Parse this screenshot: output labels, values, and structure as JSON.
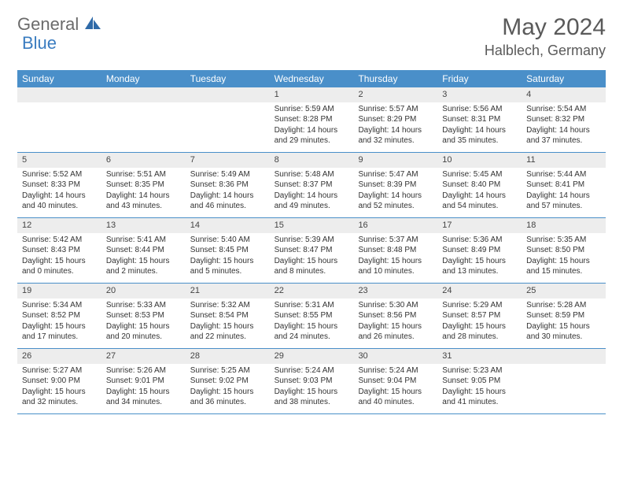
{
  "logo": {
    "part1": "General",
    "part2": "Blue"
  },
  "title": "May 2024",
  "location": "Halblech, Germany",
  "colors": {
    "header_bg": "#4a8fc9",
    "header_text": "#ffffff",
    "daynum_bg": "#ededed",
    "border": "#4a8fc9",
    "text": "#333333",
    "logo_gray": "#6b6b6b",
    "logo_blue": "#3a7cc0"
  },
  "day_names": [
    "Sunday",
    "Monday",
    "Tuesday",
    "Wednesday",
    "Thursday",
    "Friday",
    "Saturday"
  ],
  "weeks": [
    [
      null,
      null,
      null,
      {
        "n": "1",
        "sr": "Sunrise: 5:59 AM",
        "ss": "Sunset: 8:28 PM",
        "dl1": "Daylight: 14 hours",
        "dl2": "and 29 minutes."
      },
      {
        "n": "2",
        "sr": "Sunrise: 5:57 AM",
        "ss": "Sunset: 8:29 PM",
        "dl1": "Daylight: 14 hours",
        "dl2": "and 32 minutes."
      },
      {
        "n": "3",
        "sr": "Sunrise: 5:56 AM",
        "ss": "Sunset: 8:31 PM",
        "dl1": "Daylight: 14 hours",
        "dl2": "and 35 minutes."
      },
      {
        "n": "4",
        "sr": "Sunrise: 5:54 AM",
        "ss": "Sunset: 8:32 PM",
        "dl1": "Daylight: 14 hours",
        "dl2": "and 37 minutes."
      }
    ],
    [
      {
        "n": "5",
        "sr": "Sunrise: 5:52 AM",
        "ss": "Sunset: 8:33 PM",
        "dl1": "Daylight: 14 hours",
        "dl2": "and 40 minutes."
      },
      {
        "n": "6",
        "sr": "Sunrise: 5:51 AM",
        "ss": "Sunset: 8:35 PM",
        "dl1": "Daylight: 14 hours",
        "dl2": "and 43 minutes."
      },
      {
        "n": "7",
        "sr": "Sunrise: 5:49 AM",
        "ss": "Sunset: 8:36 PM",
        "dl1": "Daylight: 14 hours",
        "dl2": "and 46 minutes."
      },
      {
        "n": "8",
        "sr": "Sunrise: 5:48 AM",
        "ss": "Sunset: 8:37 PM",
        "dl1": "Daylight: 14 hours",
        "dl2": "and 49 minutes."
      },
      {
        "n": "9",
        "sr": "Sunrise: 5:47 AM",
        "ss": "Sunset: 8:39 PM",
        "dl1": "Daylight: 14 hours",
        "dl2": "and 52 minutes."
      },
      {
        "n": "10",
        "sr": "Sunrise: 5:45 AM",
        "ss": "Sunset: 8:40 PM",
        "dl1": "Daylight: 14 hours",
        "dl2": "and 54 minutes."
      },
      {
        "n": "11",
        "sr": "Sunrise: 5:44 AM",
        "ss": "Sunset: 8:41 PM",
        "dl1": "Daylight: 14 hours",
        "dl2": "and 57 minutes."
      }
    ],
    [
      {
        "n": "12",
        "sr": "Sunrise: 5:42 AM",
        "ss": "Sunset: 8:43 PM",
        "dl1": "Daylight: 15 hours",
        "dl2": "and 0 minutes."
      },
      {
        "n": "13",
        "sr": "Sunrise: 5:41 AM",
        "ss": "Sunset: 8:44 PM",
        "dl1": "Daylight: 15 hours",
        "dl2": "and 2 minutes."
      },
      {
        "n": "14",
        "sr": "Sunrise: 5:40 AM",
        "ss": "Sunset: 8:45 PM",
        "dl1": "Daylight: 15 hours",
        "dl2": "and 5 minutes."
      },
      {
        "n": "15",
        "sr": "Sunrise: 5:39 AM",
        "ss": "Sunset: 8:47 PM",
        "dl1": "Daylight: 15 hours",
        "dl2": "and 8 minutes."
      },
      {
        "n": "16",
        "sr": "Sunrise: 5:37 AM",
        "ss": "Sunset: 8:48 PM",
        "dl1": "Daylight: 15 hours",
        "dl2": "and 10 minutes."
      },
      {
        "n": "17",
        "sr": "Sunrise: 5:36 AM",
        "ss": "Sunset: 8:49 PM",
        "dl1": "Daylight: 15 hours",
        "dl2": "and 13 minutes."
      },
      {
        "n": "18",
        "sr": "Sunrise: 5:35 AM",
        "ss": "Sunset: 8:50 PM",
        "dl1": "Daylight: 15 hours",
        "dl2": "and 15 minutes."
      }
    ],
    [
      {
        "n": "19",
        "sr": "Sunrise: 5:34 AM",
        "ss": "Sunset: 8:52 PM",
        "dl1": "Daylight: 15 hours",
        "dl2": "and 17 minutes."
      },
      {
        "n": "20",
        "sr": "Sunrise: 5:33 AM",
        "ss": "Sunset: 8:53 PM",
        "dl1": "Daylight: 15 hours",
        "dl2": "and 20 minutes."
      },
      {
        "n": "21",
        "sr": "Sunrise: 5:32 AM",
        "ss": "Sunset: 8:54 PM",
        "dl1": "Daylight: 15 hours",
        "dl2": "and 22 minutes."
      },
      {
        "n": "22",
        "sr": "Sunrise: 5:31 AM",
        "ss": "Sunset: 8:55 PM",
        "dl1": "Daylight: 15 hours",
        "dl2": "and 24 minutes."
      },
      {
        "n": "23",
        "sr": "Sunrise: 5:30 AM",
        "ss": "Sunset: 8:56 PM",
        "dl1": "Daylight: 15 hours",
        "dl2": "and 26 minutes."
      },
      {
        "n": "24",
        "sr": "Sunrise: 5:29 AM",
        "ss": "Sunset: 8:57 PM",
        "dl1": "Daylight: 15 hours",
        "dl2": "and 28 minutes."
      },
      {
        "n": "25",
        "sr": "Sunrise: 5:28 AM",
        "ss": "Sunset: 8:59 PM",
        "dl1": "Daylight: 15 hours",
        "dl2": "and 30 minutes."
      }
    ],
    [
      {
        "n": "26",
        "sr": "Sunrise: 5:27 AM",
        "ss": "Sunset: 9:00 PM",
        "dl1": "Daylight: 15 hours",
        "dl2": "and 32 minutes."
      },
      {
        "n": "27",
        "sr": "Sunrise: 5:26 AM",
        "ss": "Sunset: 9:01 PM",
        "dl1": "Daylight: 15 hours",
        "dl2": "and 34 minutes."
      },
      {
        "n": "28",
        "sr": "Sunrise: 5:25 AM",
        "ss": "Sunset: 9:02 PM",
        "dl1": "Daylight: 15 hours",
        "dl2": "and 36 minutes."
      },
      {
        "n": "29",
        "sr": "Sunrise: 5:24 AM",
        "ss": "Sunset: 9:03 PM",
        "dl1": "Daylight: 15 hours",
        "dl2": "and 38 minutes."
      },
      {
        "n": "30",
        "sr": "Sunrise: 5:24 AM",
        "ss": "Sunset: 9:04 PM",
        "dl1": "Daylight: 15 hours",
        "dl2": "and 40 minutes."
      },
      {
        "n": "31",
        "sr": "Sunrise: 5:23 AM",
        "ss": "Sunset: 9:05 PM",
        "dl1": "Daylight: 15 hours",
        "dl2": "and 41 minutes."
      },
      null
    ]
  ]
}
